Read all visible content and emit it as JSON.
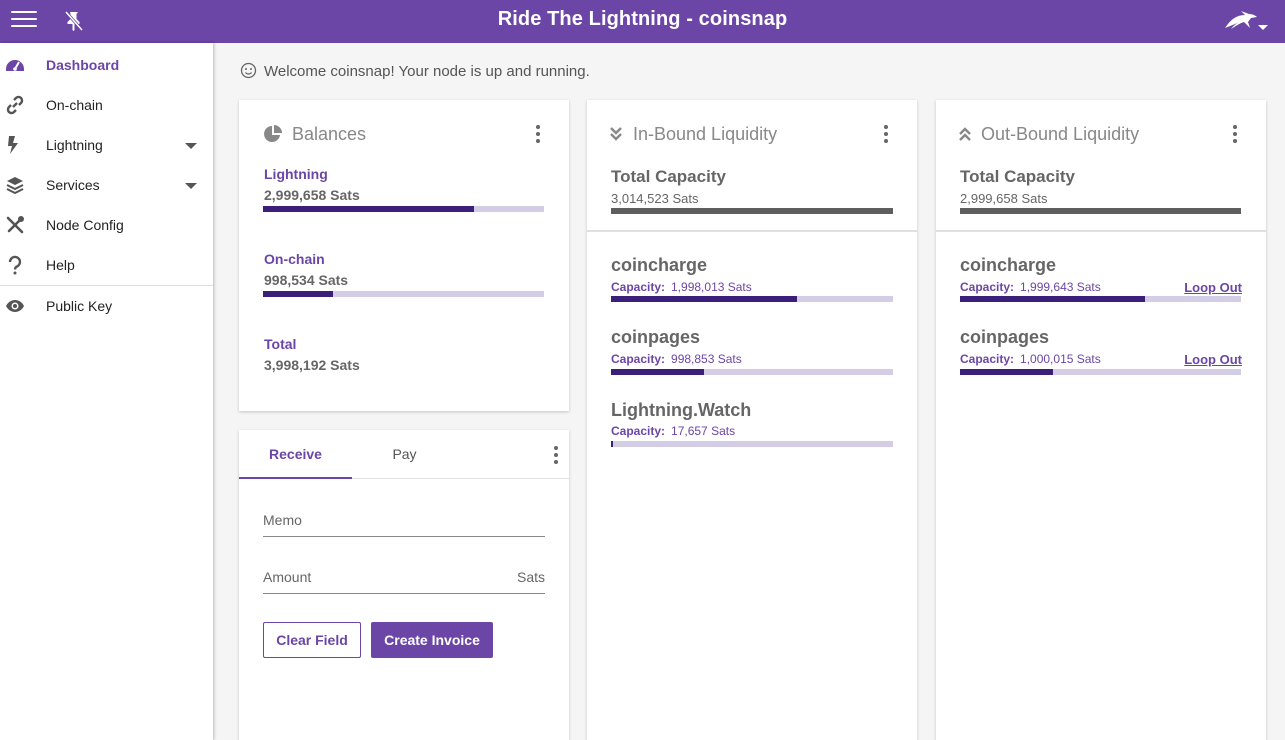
{
  "header": {
    "title": "Ride The Lightning - coinsnap"
  },
  "sidebar": {
    "items": [
      {
        "label": "Dashboard"
      },
      {
        "label": "On-chain"
      },
      {
        "label": "Lightning"
      },
      {
        "label": "Services"
      },
      {
        "label": "Node Config"
      },
      {
        "label": "Help"
      },
      {
        "label": "Public Key"
      }
    ]
  },
  "welcome": "Welcome coinsnap! Your node is up and running.",
  "balances": {
    "title": "Balances",
    "lightning": {
      "label": "Lightning",
      "value": "2,999,658 Sats",
      "fill": 0.75
    },
    "onchain": {
      "label": "On-chain",
      "value": "998,534 Sats",
      "fill": 0.25
    },
    "total": {
      "label": "Total",
      "value": "3,998,192 Sats"
    }
  },
  "payment": {
    "tabs": [
      "Receive",
      "Pay"
    ],
    "memo_placeholder": "Memo",
    "amount_placeholder": "Amount",
    "amount_suffix": "Sats",
    "clear_label": "Clear Field",
    "create_label": "Create Invoice"
  },
  "inbound": {
    "title": "In-Bound Liquidity",
    "total_label": "Total Capacity",
    "total_value": "3,014,523 Sats",
    "capacity_label": "Capacity:",
    "peers": [
      {
        "name": "coincharge",
        "capacity": "1,998,013 Sats",
        "fill": 0.66
      },
      {
        "name": "coinpages",
        "capacity": "998,853 Sats",
        "fill": 0.33
      },
      {
        "name": "Lightning.Watch",
        "capacity": "17,657 Sats",
        "fill": 0.006
      }
    ]
  },
  "outbound": {
    "title": "Out-Bound Liquidity",
    "total_label": "Total Capacity",
    "total_value": "2,999,658 Sats",
    "capacity_label": "Capacity:",
    "loop_label": "Loop Out",
    "peers": [
      {
        "name": "coincharge",
        "capacity": "1,999,643 Sats",
        "fill": 0.66
      },
      {
        "name": "coinpages",
        "capacity": "1,000,015 Sats",
        "fill": 0.33
      }
    ]
  },
  "colors": {
    "primary": "#6b46a6",
    "bar_fill": "#3b1f7a",
    "bar_track": "#d3cde6"
  }
}
